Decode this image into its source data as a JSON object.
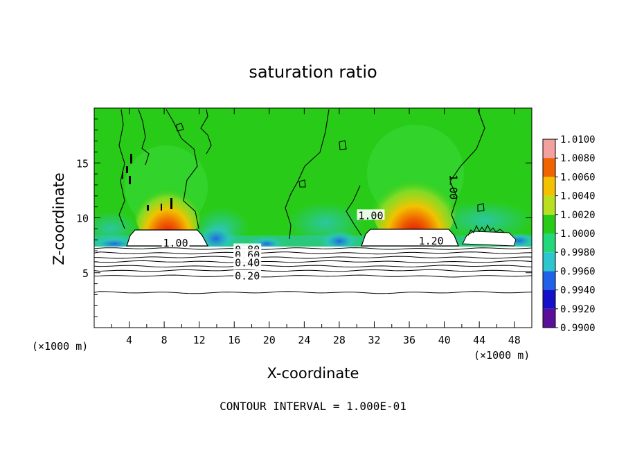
{
  "chart_data": {
    "type": "heatmap",
    "title": "saturation ratio",
    "xlabel": "X-coordinate",
    "ylabel": "Z-coordinate",
    "x_unit": "(×1000 m)",
    "xlim": [
      0,
      50
    ],
    "ylim": [
      0,
      20
    ],
    "x_ticks": [
      4,
      8,
      12,
      16,
      20,
      24,
      28,
      32,
      36,
      40,
      44,
      48
    ],
    "y_ticks": [
      5,
      10,
      15
    ],
    "footer": "CONTOUR INTERVAL = 1.000E-01",
    "colorbar": {
      "levels": [
        "0.9900",
        "0.9920",
        "0.9940",
        "0.9960",
        "0.9980",
        "1.0000",
        "1.0020",
        "1.0040",
        "1.0060",
        "1.0080",
        "1.0100"
      ],
      "colors": [
        "#5b0f99",
        "#1410c8",
        "#1f62e8",
        "#2cc6cc",
        "#22d87a",
        "#28cc18",
        "#b8e020",
        "#f2c200",
        "#f06400",
        "#e01010",
        "#f2a0a0"
      ]
    },
    "background_value": "1.0000",
    "cloud_hotspots": [
      {
        "x": 9,
        "z": 9.5,
        "value": 1.006
      },
      {
        "x": 36,
        "z": 10,
        "value": 1.008
      }
    ],
    "dry_bands": [
      {
        "x_from": 0,
        "x_to": 50,
        "z": 7.8,
        "value": 0.992
      }
    ],
    "contour_labels": [
      {
        "text": "1.00",
        "x": 9.3,
        "z": 7.7
      },
      {
        "text": "1.20",
        "x": 38.5,
        "z": 7.9
      },
      {
        "text": "0.80",
        "x": 17.5,
        "z": 7.1
      },
      {
        "text": "0.60",
        "x": 17.5,
        "z": 6.6
      },
      {
        "text": "0.40",
        "x": 17.5,
        "z": 5.9
      },
      {
        "text": "0.20",
        "x": 17.5,
        "z": 4.7
      },
      {
        "text": "1.00",
        "x": 31.6,
        "z": 10.2
      },
      {
        "text": "1.00",
        "x": 41.0,
        "z": 12.8
      }
    ],
    "contour_levels_z": [
      7.2,
      6.8,
      6.4,
      6.0,
      5.6,
      5.2,
      4.7,
      3.2
    ]
  }
}
